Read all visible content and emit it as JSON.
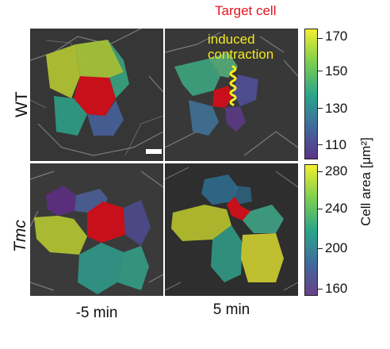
{
  "header": {
    "target_label": "Target cell"
  },
  "annotation": {
    "line1": "induced",
    "line2": "contraction"
  },
  "rows": {
    "wt_label": "WT",
    "tmc_label": "Tmc"
  },
  "columns": {
    "left_label": "-5 min",
    "right_label": "5 min"
  },
  "colorbar": {
    "title": "Cell area [μm²]",
    "top_ticks": [
      "170",
      "150",
      "130",
      "110"
    ],
    "bottom_ticks": [
      "280",
      "240",
      "200",
      "160"
    ]
  },
  "colors": {
    "target": "#c8101a",
    "contraction": "#f4ee22",
    "viridis_low": "#6a3f8a",
    "viridis_high": "#f2ee2e"
  }
}
